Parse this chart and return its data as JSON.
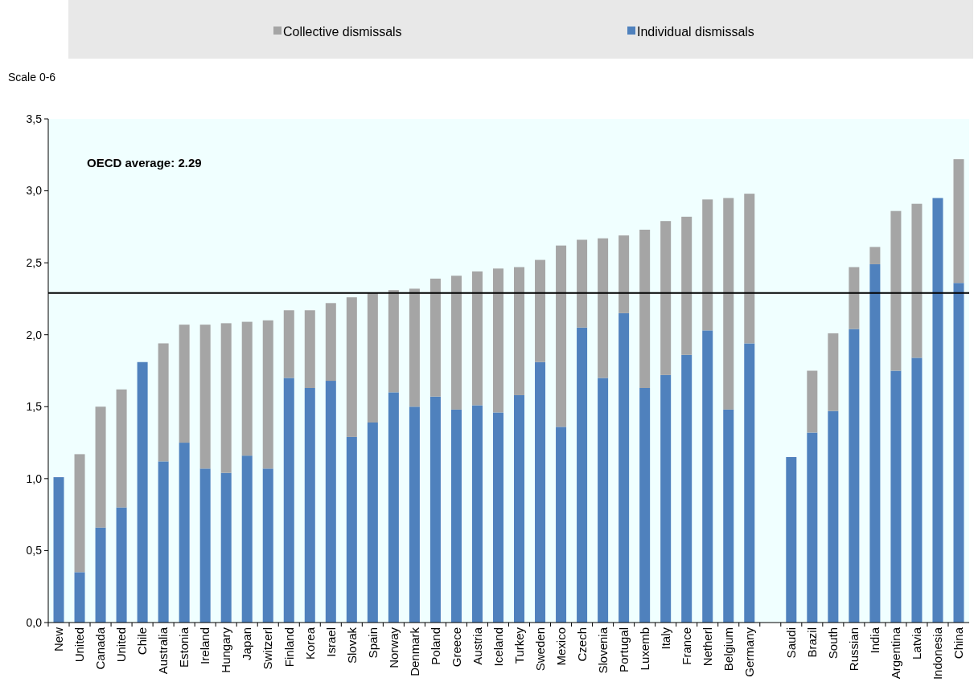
{
  "chart_data": {
    "type": "bar",
    "stacked": true,
    "ylabel": "Scale 0-6",
    "categories": [
      "New",
      "United",
      "Canada",
      "United",
      "Chile",
      "Australia",
      "Estonia",
      "Ireland",
      "Hungary",
      "Japan",
      "Switzerl",
      "Finland",
      "Korea",
      "Israel",
      "Slovak",
      "Spain",
      "Norway",
      "Denmark",
      "Poland",
      "Greece",
      "Austria",
      "Iceland",
      "Turkey",
      "Sweden",
      "Mexico",
      "Czech",
      "Slovenia",
      "Portugal",
      "Luxemb",
      "Italy",
      "France",
      "Netherl",
      "Belgium",
      "Germany",
      null,
      "Saudi",
      "Brazil",
      "South",
      "Russian",
      "India",
      "Argentina",
      "Latvia",
      "Indonesia",
      "China"
    ],
    "series": [
      {
        "name": "Individual dismissals",
        "color": "#4f81bd",
        "values": [
          1.01,
          0.35,
          0.66,
          0.8,
          1.81,
          1.12,
          1.25,
          1.07,
          1.04,
          1.16,
          1.07,
          1.7,
          1.63,
          1.68,
          1.29,
          1.39,
          1.6,
          1.5,
          1.57,
          1.48,
          1.51,
          1.46,
          1.58,
          1.81,
          1.36,
          2.05,
          1.7,
          2.15,
          1.63,
          1.72,
          1.86,
          2.03,
          1.48,
          1.94,
          null,
          1.15,
          1.32,
          1.47,
          2.04,
          2.49,
          1.75,
          1.84,
          2.95,
          2.36
        ]
      },
      {
        "name": "Collective dismissals",
        "color": "#a5a5a5",
        "values": [
          null,
          0.82,
          0.84,
          0.82,
          null,
          0.82,
          0.82,
          1.0,
          1.04,
          0.93,
          1.03,
          0.47,
          0.54,
          0.54,
          0.97,
          0.9,
          0.71,
          0.82,
          0.82,
          0.93,
          0.93,
          1.0,
          0.89,
          0.71,
          1.26,
          0.61,
          0.97,
          0.54,
          1.1,
          1.07,
          0.96,
          0.91,
          1.47,
          1.04,
          null,
          null,
          0.43,
          0.54,
          0.43,
          0.12,
          1.11,
          1.07,
          null,
          0.86
        ]
      }
    ],
    "ylim": [
      0,
      3.5
    ],
    "yticks": [
      {
        "value": 0,
        "label": "0,0"
      },
      {
        "value": 0.5,
        "label": "0,5"
      },
      {
        "value": 1,
        "label": "1,0"
      },
      {
        "value": 1.5,
        "label": "1,5"
      },
      {
        "value": 2,
        "label": "2,0"
      },
      {
        "value": 2.5,
        "label": "2,5"
      },
      {
        "value": 3,
        "label": "3,0"
      },
      {
        "value": 3.5,
        "label": "3,5"
      }
    ],
    "ref_lines": [
      {
        "axis": "y",
        "value": 2.29,
        "color": "#000000"
      }
    ],
    "annotations": [
      "OECD average: 2.29"
    ],
    "legend": "top"
  }
}
